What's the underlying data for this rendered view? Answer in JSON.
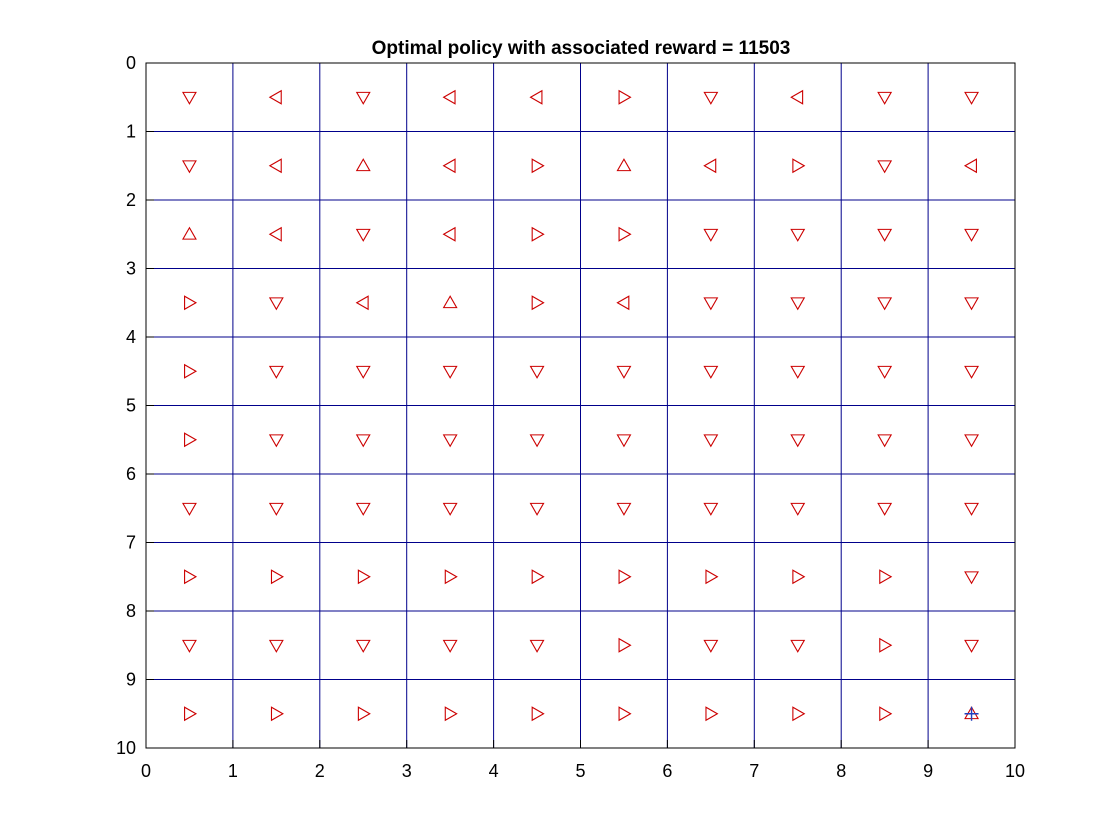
{
  "chart_data": {
    "type": "scatter",
    "title": "Optimal policy with associated reward = 11503",
    "xlabel": "",
    "ylabel": "",
    "xlim": [
      0,
      10
    ],
    "ylim": [
      0,
      10
    ],
    "y_reversed": true,
    "xticks": [
      "0",
      "1",
      "2",
      "3",
      "4",
      "5",
      "6",
      "7",
      "8",
      "9",
      "10"
    ],
    "yticks": [
      "0",
      "1",
      "2",
      "3",
      "4",
      "5",
      "6",
      "7",
      "8",
      "9",
      "10"
    ],
    "grid": true,
    "grid_color": "#00008b",
    "marker_color": "#cc0000",
    "goal_marker_color": "#1f3fbf",
    "policy_legend": {
      "U": "up",
      "D": "down",
      "L": "left",
      "R": "right"
    },
    "policy_rows": [
      [
        "D",
        "L",
        "D",
        "L",
        "L",
        "R",
        "D",
        "L",
        "D",
        "D"
      ],
      [
        "D",
        "L",
        "U",
        "L",
        "R",
        "U",
        "L",
        "R",
        "D",
        "L"
      ],
      [
        "U",
        "L",
        "D",
        "L",
        "R",
        "R",
        "D",
        "D",
        "D",
        "D"
      ],
      [
        "R",
        "D",
        "L",
        "U",
        "R",
        "L",
        "D",
        "D",
        "D",
        "D"
      ],
      [
        "R",
        "D",
        "D",
        "D",
        "D",
        "D",
        "D",
        "D",
        "D",
        "D"
      ],
      [
        "R",
        "D",
        "D",
        "D",
        "D",
        "D",
        "D",
        "D",
        "D",
        "D"
      ],
      [
        "D",
        "D",
        "D",
        "D",
        "D",
        "D",
        "D",
        "D",
        "D",
        "D"
      ],
      [
        "R",
        "R",
        "R",
        "R",
        "R",
        "R",
        "R",
        "R",
        "R",
        "D"
      ],
      [
        "D",
        "D",
        "D",
        "D",
        "D",
        "R",
        "D",
        "D",
        "R",
        "D"
      ],
      [
        "R",
        "R",
        "R",
        "R",
        "R",
        "R",
        "R",
        "R",
        "R",
        "U"
      ]
    ],
    "goal_cell": {
      "x": 9.5,
      "y": 9.5
    }
  }
}
